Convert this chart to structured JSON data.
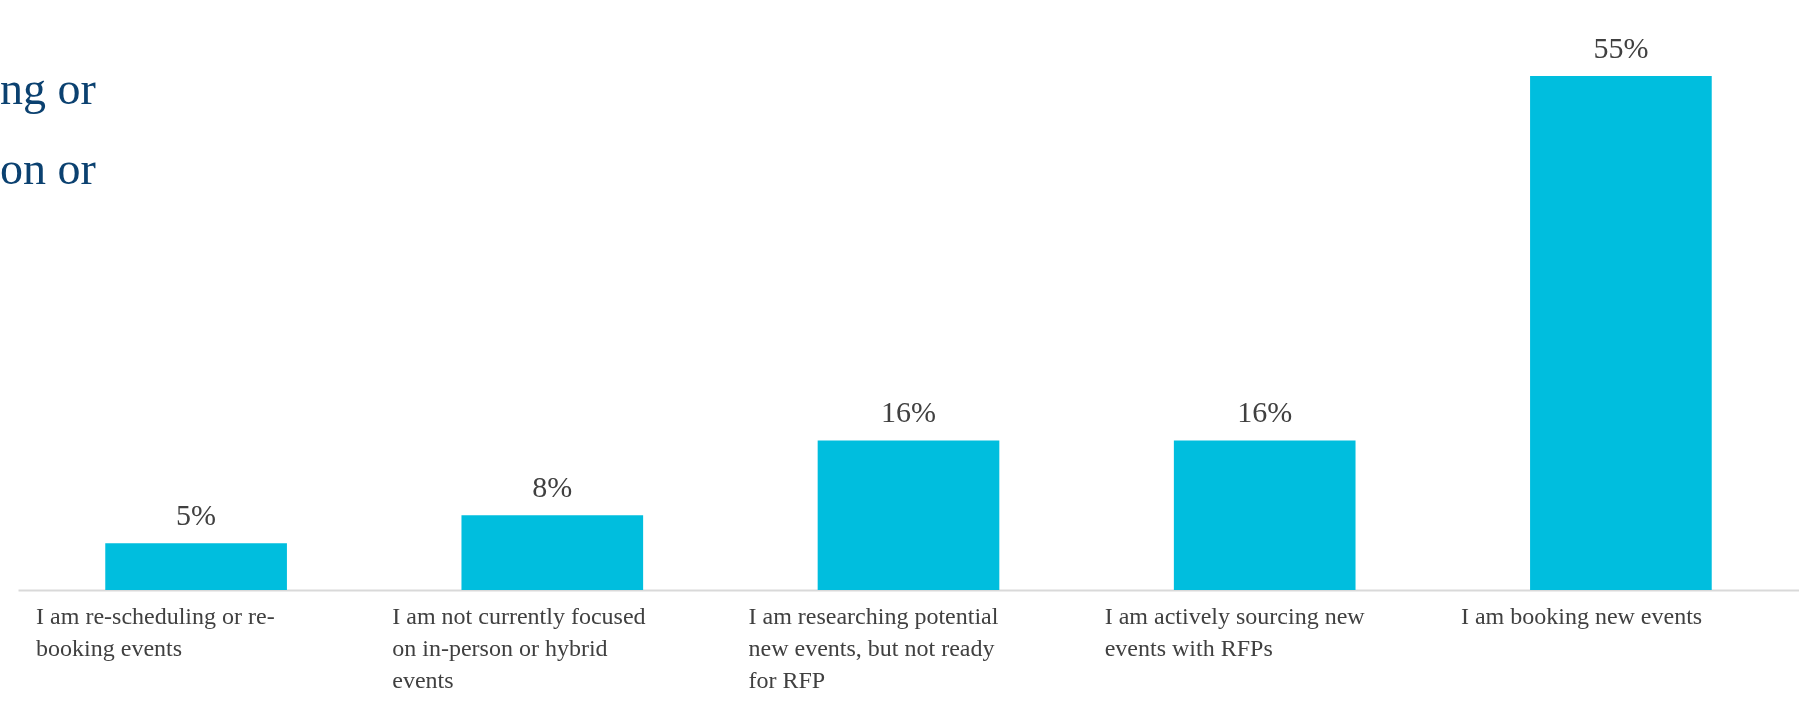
{
  "chart_data": {
    "type": "bar",
    "title": "ng or\non or",
    "categories": [
      "I am re-scheduling or re-booking events",
      "I am not currently focused on in-person or hybrid events",
      "I am researching potential new events, but not ready for RFP",
      "I am actively sourcing new events with RFPs",
      "I am booking new events"
    ],
    "values": [
      5,
      8,
      16,
      16,
      55
    ],
    "color": "#00bede",
    "value_labels": [
      "5%",
      "8%",
      "16%",
      "16%",
      "55%"
    ]
  }
}
